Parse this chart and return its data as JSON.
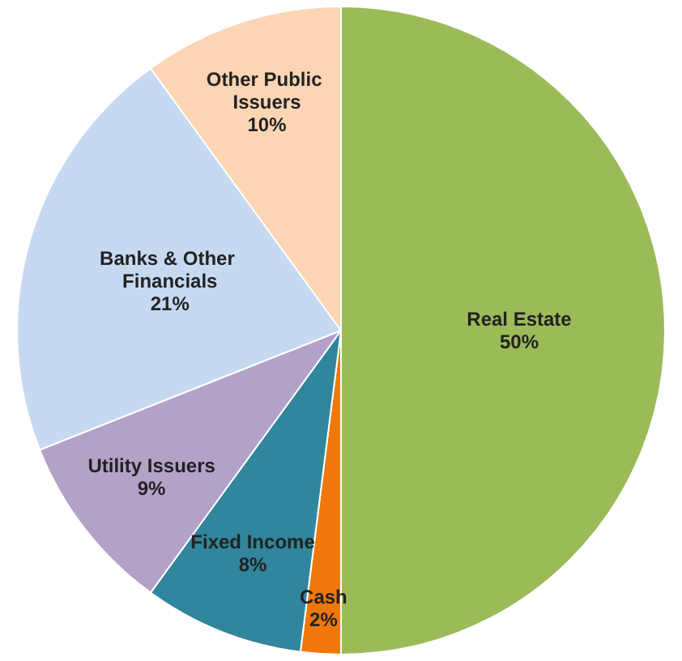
{
  "chart_data": {
    "type": "pie",
    "categories": [
      "Real Estate",
      "Cash",
      "Fixed Income",
      "Utility Issuers",
      "Banks & Other Financials",
      "Other Public Issuers"
    ],
    "values": [
      50,
      2,
      8,
      9,
      21,
      10
    ],
    "value_labels": [
      "50%",
      "2%",
      "8%",
      "9%",
      "21%",
      "10%"
    ],
    "colors": [
      "#9bbb59",
      "#f0780a",
      "#31859c",
      "#b3a2c7",
      "#c6d9f1",
      "#fcd5b5"
    ],
    "legend": false
  }
}
